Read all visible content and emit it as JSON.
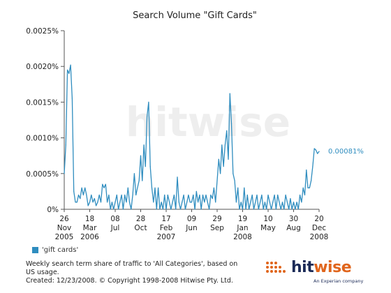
{
  "chart_data": {
    "type": "line",
    "title": "Search Volume \"Gift Cards\"",
    "y_tick_labels": [
      "0%",
      "0.0005%",
      "0.0010%",
      "0.0015%",
      "0.0020%",
      "0.0025%"
    ],
    "y_ticks": [
      0,
      0.0005,
      0.001,
      0.0015,
      0.002,
      0.0025
    ],
    "ylim": [
      0,
      0.0025
    ],
    "xlim": [
      "2005-11-26",
      "2008-12-20"
    ],
    "grid": false,
    "x_tick_labels": [
      {
        "date": "2005-11-26",
        "line1": "26",
        "line2": "Nov",
        "line3": "2005"
      },
      {
        "date": "2006-03-18",
        "line1": "18",
        "line2": "Mar",
        "line3": "2006"
      },
      {
        "date": "2006-07-08",
        "line1": "08",
        "line2": "Jul",
        "line3": ""
      },
      {
        "date": "2006-10-28",
        "line1": "28",
        "line2": "Oct",
        "line3": ""
      },
      {
        "date": "2007-02-17",
        "line1": "17",
        "line2": "Feb",
        "line3": "2007"
      },
      {
        "date": "2007-06-09",
        "line1": "09",
        "line2": "Jun",
        "line3": ""
      },
      {
        "date": "2007-09-29",
        "line1": "29",
        "line2": "Sep",
        "line3": ""
      },
      {
        "date": "2008-01-19",
        "line1": "19",
        "line2": "Jan",
        "line3": "2008"
      },
      {
        "date": "2008-05-10",
        "line1": "10",
        "line2": "May",
        "line3": ""
      },
      {
        "date": "2008-08-30",
        "line1": "30",
        "line2": "Aug",
        "line3": ""
      },
      {
        "date": "2008-12-20",
        "line1": "20",
        "line2": "Dec",
        "line3": "2008"
      }
    ],
    "series": [
      {
        "name": "'gift cards'",
        "color": "#2f8dbf",
        "end_label": "0.00081%",
        "points": [
          [
            "2005-11-26",
            0.0005
          ],
          [
            "2005-12-03",
            0.0009
          ],
          [
            "2005-12-10",
            0.00195
          ],
          [
            "2005-12-17",
            0.0019
          ],
          [
            "2005-12-24",
            0.00202
          ],
          [
            "2005-12-31",
            0.00155
          ],
          [
            "2006-01-07",
            0.00025
          ],
          [
            "2006-01-14",
            0.0001
          ],
          [
            "2006-01-21",
            0.0001
          ],
          [
            "2006-01-28",
            0.0002
          ],
          [
            "2006-02-04",
            0.00015
          ],
          [
            "2006-02-11",
            0.0003
          ],
          [
            "2006-02-18",
            0.0002
          ],
          [
            "2006-02-25",
            0.0003
          ],
          [
            "2006-03-04",
            0.0002
          ],
          [
            "2006-03-11",
            5e-05
          ],
          [
            "2006-03-18",
            0.0001
          ],
          [
            "2006-03-25",
            0.0002
          ],
          [
            "2006-04-01",
            0.0001
          ],
          [
            "2006-04-08",
            0.00015
          ],
          [
            "2006-04-15",
            5e-05
          ],
          [
            "2006-04-22",
            0.0001
          ],
          [
            "2006-04-29",
            0.0002
          ],
          [
            "2006-05-06",
            0.0001
          ],
          [
            "2006-05-13",
            0.00035
          ],
          [
            "2006-05-20",
            0.0003
          ],
          [
            "2006-05-27",
            0.00035
          ],
          [
            "2006-06-03",
            0.0001
          ],
          [
            "2006-06-10",
            0.0002
          ],
          [
            "2006-06-17",
            0.0
          ],
          [
            "2006-06-24",
            0.0001
          ],
          [
            "2006-07-01",
            0.0
          ],
          [
            "2006-07-08",
            0.0001
          ],
          [
            "2006-07-15",
            0.0002
          ],
          [
            "2006-07-22",
            0.0
          ],
          [
            "2006-07-29",
            0.0001
          ],
          [
            "2006-08-05",
            0.0002
          ],
          [
            "2006-08-12",
            0.0
          ],
          [
            "2006-08-19",
            0.0002
          ],
          [
            "2006-08-26",
            0.0001
          ],
          [
            "2006-09-02",
            0.0003
          ],
          [
            "2006-09-09",
            0.0001
          ],
          [
            "2006-09-16",
            0.0
          ],
          [
            "2006-09-23",
            0.0002
          ],
          [
            "2006-09-30",
            0.0005
          ],
          [
            "2006-10-07",
            0.0002
          ],
          [
            "2006-10-14",
            0.0003
          ],
          [
            "2006-10-21",
            0.0004
          ],
          [
            "2006-10-28",
            0.00075
          ],
          [
            "2006-11-04",
            0.0004
          ],
          [
            "2006-11-11",
            0.0009
          ],
          [
            "2006-11-18",
            0.0006
          ],
          [
            "2006-11-25",
            0.0013
          ],
          [
            "2006-12-02",
            0.0015
          ],
          [
            "2006-12-09",
            0.0006
          ],
          [
            "2006-12-16",
            0.0003
          ],
          [
            "2006-12-23",
            0.0001
          ],
          [
            "2006-12-30",
            0.0003
          ],
          [
            "2007-01-06",
            0.0
          ],
          [
            "2007-01-13",
            0.0003
          ],
          [
            "2007-01-20",
            0.0
          ],
          [
            "2007-01-27",
            0.0001
          ],
          [
            "2007-02-03",
            0.0
          ],
          [
            "2007-02-10",
            0.0002
          ],
          [
            "2007-02-17",
            0.0
          ],
          [
            "2007-02-24",
            0.0002
          ],
          [
            "2007-03-03",
            0.0001
          ],
          [
            "2007-03-10",
            0.0
          ],
          [
            "2007-03-17",
            0.0001
          ],
          [
            "2007-03-24",
            0.0002
          ],
          [
            "2007-03-31",
            0.0
          ],
          [
            "2007-04-07",
            0.00045
          ],
          [
            "2007-04-14",
            0.0001
          ],
          [
            "2007-04-21",
            0.0
          ],
          [
            "2007-04-28",
            0.0001
          ],
          [
            "2007-05-05",
            0.0002
          ],
          [
            "2007-05-12",
            0.0
          ],
          [
            "2007-05-19",
            0.0001
          ],
          [
            "2007-05-26",
            0.0002
          ],
          [
            "2007-06-02",
            0.0001
          ],
          [
            "2007-06-09",
            0.0001
          ],
          [
            "2007-06-16",
            0.0002
          ],
          [
            "2007-06-23",
            0.0
          ],
          [
            "2007-06-30",
            0.00025
          ],
          [
            "2007-07-07",
            0.0001
          ],
          [
            "2007-07-14",
            0.0002
          ],
          [
            "2007-07-21",
            0.0
          ],
          [
            "2007-07-28",
            0.0002
          ],
          [
            "2007-08-04",
            0.0001
          ],
          [
            "2007-08-11",
            0.0002
          ],
          [
            "2007-08-18",
            0.0001
          ],
          [
            "2007-08-25",
            0.0
          ],
          [
            "2007-09-01",
            0.0002
          ],
          [
            "2007-09-08",
            0.00015
          ],
          [
            "2007-09-15",
            0.0003
          ],
          [
            "2007-09-22",
            0.0001
          ],
          [
            "2007-09-29",
            0.0004
          ],
          [
            "2007-10-06",
            0.0007
          ],
          [
            "2007-10-13",
            0.0005
          ],
          [
            "2007-10-20",
            0.0009
          ],
          [
            "2007-10-27",
            0.0006
          ],
          [
            "2007-11-03",
            0.0009
          ],
          [
            "2007-11-10",
            0.0011
          ],
          [
            "2007-11-17",
            0.0007
          ],
          [
            "2007-11-24",
            0.00162
          ],
          [
            "2007-12-01",
            0.0012
          ],
          [
            "2007-12-08",
            0.0005
          ],
          [
            "2007-12-15",
            0.0004
          ],
          [
            "2007-12-22",
            0.0001
          ],
          [
            "2007-12-29",
            0.0003
          ],
          [
            "2008-01-05",
            0.0
          ],
          [
            "2008-01-12",
            0.0001
          ],
          [
            "2008-01-19",
            0.0
          ],
          [
            "2008-01-26",
            0.0003
          ],
          [
            "2008-02-02",
            0.0
          ],
          [
            "2008-02-09",
            0.0002
          ],
          [
            "2008-02-16",
            0.0
          ],
          [
            "2008-02-23",
            0.0001
          ],
          [
            "2008-03-01",
            0.0002
          ],
          [
            "2008-03-08",
            0.0
          ],
          [
            "2008-03-15",
            0.0001
          ],
          [
            "2008-03-22",
            0.0002
          ],
          [
            "2008-03-29",
            0.0
          ],
          [
            "2008-04-05",
            0.0001
          ],
          [
            "2008-04-12",
            0.0002
          ],
          [
            "2008-04-19",
            0.0
          ],
          [
            "2008-04-26",
            0.0001
          ],
          [
            "2008-05-03",
            0.0
          ],
          [
            "2008-05-10",
            0.0002
          ],
          [
            "2008-05-17",
            0.0001
          ],
          [
            "2008-05-24",
            0.0
          ],
          [
            "2008-05-31",
            0.0001
          ],
          [
            "2008-06-07",
            0.0002
          ],
          [
            "2008-06-14",
            0.0
          ],
          [
            "2008-06-21",
            0.0002
          ],
          [
            "2008-06-28",
            0.0001
          ],
          [
            "2008-07-05",
            0.0
          ],
          [
            "2008-07-12",
            0.0001
          ],
          [
            "2008-07-19",
            0.0
          ],
          [
            "2008-07-26",
            0.0002
          ],
          [
            "2008-08-02",
            0.0001
          ],
          [
            "2008-08-09",
            0.0
          ],
          [
            "2008-08-16",
            0.00015
          ],
          [
            "2008-08-23",
            0.0
          ],
          [
            "2008-08-30",
            0.0001
          ],
          [
            "2008-09-06",
            0.0
          ],
          [
            "2008-09-13",
            0.0001
          ],
          [
            "2008-09-20",
            0.0
          ],
          [
            "2008-09-27",
            0.0002
          ],
          [
            "2008-10-04",
            0.0001
          ],
          [
            "2008-10-11",
            0.0003
          ],
          [
            "2008-10-18",
            0.0002
          ],
          [
            "2008-10-25",
            0.00055
          ],
          [
            "2008-11-01",
            0.0003
          ],
          [
            "2008-11-08",
            0.0003
          ],
          [
            "2008-11-15",
            0.0004
          ],
          [
            "2008-11-22",
            0.0006
          ],
          [
            "2008-11-29",
            0.00085
          ],
          [
            "2008-12-06",
            0.00083
          ],
          [
            "2008-12-13",
            0.00078
          ],
          [
            "2008-12-20",
            0.00081
          ]
        ]
      }
    ]
  },
  "legend": {
    "label": "'gift cards'",
    "color": "#2f8dbf"
  },
  "watermark": {
    "text": "hitwise"
  },
  "footnote": {
    "line1": "Weekly search term share of traffic to 'All Categories', based on",
    "line2": "US usage.",
    "line3": "Created: 12/23/2008. © Copyright 1998-2008 Hitwise Pty. Ltd."
  },
  "logo": {
    "brand_part1": "hit",
    "brand_part2": "wise",
    "tagline": "An Experian company"
  },
  "colors": {
    "axis": "#555555",
    "line": "#2f8dbf",
    "brand_navy": "#1b2a57",
    "brand_orange": "#e0651c"
  }
}
